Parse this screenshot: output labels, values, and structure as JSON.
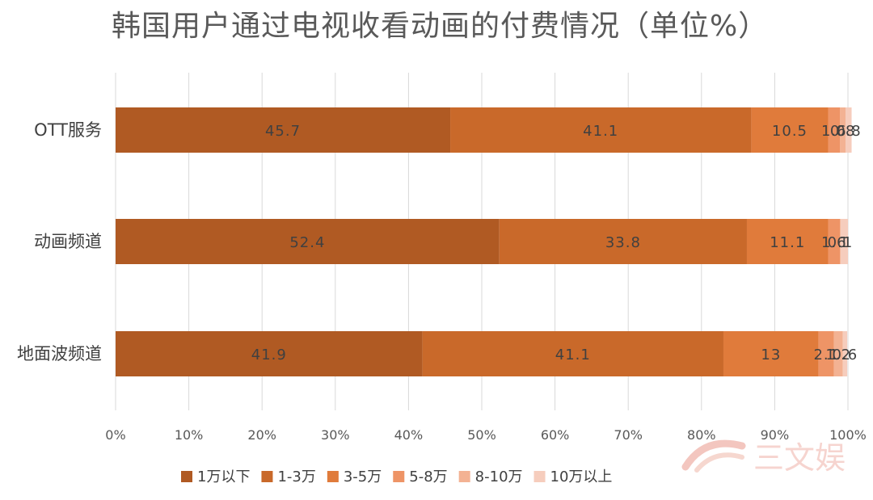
{
  "chart_data": {
    "type": "bar",
    "orientation": "horizontal",
    "stacked": "percent",
    "title": "韩国用户通过电视收看动画的付费情况（单位%）",
    "categories": [
      "OTT服务",
      "动画频道",
      "地面波频道"
    ],
    "series": [
      {
        "name": "1万以下",
        "color": "#b05a23",
        "values": [
          45.7,
          52.4,
          41.9
        ]
      },
      {
        "name": "1-3万",
        "color": "#c9692a",
        "values": [
          41.1,
          33.8,
          41.1
        ]
      },
      {
        "name": "3-5万",
        "color": "#e07b3b",
        "values": [
          10.5,
          11.1,
          13
        ]
      },
      {
        "name": "5-8万",
        "color": "#ee9466",
        "values": [
          1.6,
          1.6,
          2.1
        ]
      },
      {
        "name": "8-10万",
        "color": "#f3b293",
        "values": [
          0.8,
          0.1,
          1.2
        ]
      },
      {
        "name": "10万以上",
        "color": "#f6cdbd",
        "values": [
          0.8,
          1,
          0.6
        ]
      }
    ],
    "data_labels": [
      [
        "45.7",
        "41.1",
        "10.5",
        "1.6",
        "0.8",
        "0.8"
      ],
      [
        "52.4",
        "33.8",
        "11.1",
        "1.6",
        "0.1",
        "1"
      ],
      [
        "41.9",
        "41.1",
        "13",
        "2.1",
        "1.2",
        "0.6"
      ]
    ],
    "x_ticks": [
      "0%",
      "10%",
      "20%",
      "30%",
      "40%",
      "50%",
      "60%",
      "70%",
      "80%",
      "90%",
      "100%"
    ],
    "xlim": [
      0,
      100
    ],
    "grid": "vertical",
    "legend": "bottom"
  },
  "watermark": {
    "text": "三文娱"
  }
}
